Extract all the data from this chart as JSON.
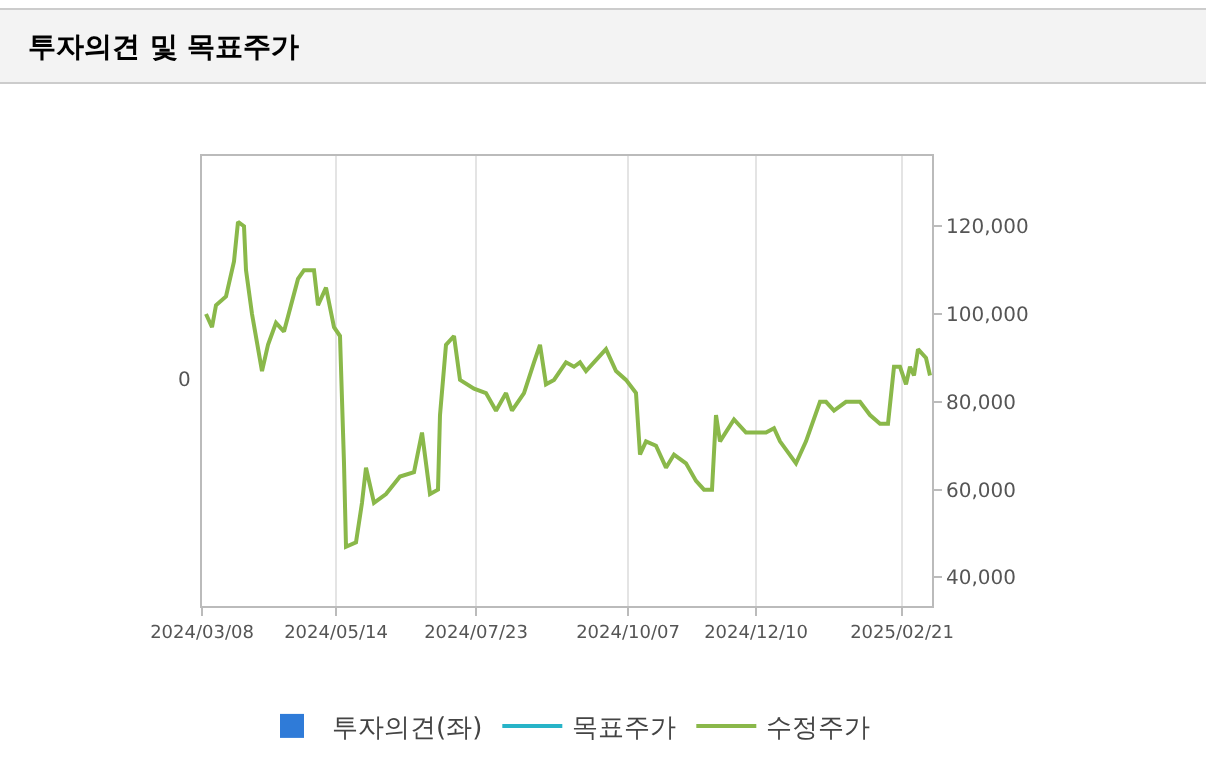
{
  "chart_data": {
    "type": "line",
    "title": "투자의견 및 목표주가",
    "x": [
      "2024-03-10",
      "2024-03-13",
      "2024-03-15",
      "2024-03-20",
      "2024-03-24",
      "2024-03-26",
      "2024-03-29",
      "2024-03-30",
      "2024-04-02",
      "2024-04-07",
      "2024-04-10",
      "2024-04-14",
      "2024-04-18",
      "2024-04-25",
      "2024-04-28",
      "2024-05-03",
      "2024-05-05",
      "2024-05-09",
      "2024-05-13",
      "2024-05-16",
      "2024-05-18",
      "2024-05-19",
      "2024-05-24",
      "2024-05-27",
      "2024-05-29",
      "2024-06-02",
      "2024-06-08",
      "2024-06-15",
      "2024-06-22",
      "2024-06-26",
      "2024-06-30",
      "2024-07-04",
      "2024-07-05",
      "2024-07-08",
      "2024-07-12",
      "2024-07-15",
      "2024-07-22",
      "2024-07-28",
      "2024-08-02",
      "2024-08-07",
      "2024-08-10",
      "2024-08-16",
      "2024-08-21",
      "2024-08-24",
      "2024-08-27",
      "2024-08-31",
      "2024-09-06",
      "2024-09-10",
      "2024-09-13",
      "2024-09-16",
      "2024-09-26",
      "2024-10-01",
      "2024-10-06",
      "2024-10-11",
      "2024-10-13",
      "2024-10-16",
      "2024-10-21",
      "2024-10-26",
      "2024-10-30",
      "2024-11-05",
      "2024-11-10",
      "2024-11-14",
      "2024-11-18",
      "2024-11-20",
      "2024-11-22",
      "2024-11-29",
      "2024-12-05",
      "2024-12-15",
      "2024-12-19",
      "2024-12-22",
      "2024-12-30",
      "2025-01-04",
      "2025-01-11",
      "2025-01-14",
      "2025-01-18",
      "2025-01-24",
      "2025-01-31",
      "2025-02-05",
      "2025-02-10",
      "2025-02-14",
      "2025-02-17",
      "2025-02-20",
      "2025-02-23",
      "2025-02-25",
      "2025-02-27",
      "2025-03-01",
      "2025-03-05",
      "2025-03-07"
    ],
    "series": [
      {
        "name": "투자의견(좌)",
        "type": "bar",
        "color": "#2f7bd8",
        "values": [
          null,
          null,
          null,
          null,
          null,
          null,
          null,
          null,
          null,
          null,
          null,
          null,
          null,
          null,
          null,
          null,
          null,
          null,
          null,
          null,
          null,
          null,
          null,
          null,
          null,
          null,
          null,
          null,
          null,
          null,
          null,
          null,
          null,
          null,
          null,
          null,
          null,
          null,
          null,
          null,
          null,
          null,
          null,
          null,
          null,
          null,
          null,
          null,
          null,
          null,
          null,
          null,
          null,
          null,
          null,
          null,
          null,
          null,
          null,
          null,
          null,
          null,
          null,
          null,
          null,
          null,
          null,
          null,
          null,
          null,
          null,
          null,
          null,
          null,
          null,
          null,
          null,
          null,
          null,
          null,
          null,
          null,
          null,
          null,
          null,
          null,
          null,
          null
        ]
      },
      {
        "name": "목표주가",
        "color": "#27b4c8",
        "values": [
          null,
          null,
          null,
          null,
          null,
          null,
          null,
          null,
          null,
          null,
          null,
          null,
          null,
          null,
          null,
          null,
          null,
          null,
          null,
          null,
          null,
          null,
          null,
          null,
          null,
          null,
          null,
          null,
          null,
          null,
          null,
          null,
          null,
          null,
          null,
          null,
          null,
          null,
          null,
          null,
          null,
          null,
          null,
          null,
          null,
          null,
          null,
          null,
          null,
          null,
          null,
          null,
          null,
          null,
          null,
          null,
          null,
          null,
          null,
          null,
          null,
          null,
          null,
          null,
          null,
          null,
          null,
          null,
          null,
          null,
          null,
          null,
          null,
          null,
          null,
          null,
          null,
          null,
          null,
          null,
          null,
          null,
          null,
          null,
          null,
          null,
          null,
          null
        ]
      },
      {
        "name": "수정주가",
        "color": "#8ab84a",
        "values": [
          100000,
          97000,
          102000,
          104000,
          112000,
          121000,
          120000,
          110000,
          100000,
          87000,
          93000,
          98000,
          96000,
          108000,
          110000,
          110000,
          102000,
          106000,
          97000,
          95000,
          66000,
          47000,
          48000,
          57000,
          65000,
          57000,
          59000,
          63000,
          64000,
          73000,
          59000,
          60000,
          77000,
          93000,
          95000,
          85000,
          83000,
          82000,
          78000,
          82000,
          78000,
          82000,
          89000,
          93000,
          84000,
          85000,
          89000,
          88000,
          89000,
          87000,
          92000,
          87000,
          85000,
          82000,
          68000,
          71000,
          70000,
          65000,
          68000,
          66000,
          62000,
          60000,
          60000,
          77000,
          71000,
          76000,
          73000,
          73000,
          74000,
          71000,
          66000,
          71000,
          80000,
          80000,
          78000,
          80000,
          80000,
          77000,
          75000,
          75000,
          88000,
          88000,
          84000,
          88000,
          86000,
          92000,
          90000,
          86000
        ]
      }
    ],
    "xlim": [
      "2024-03-08",
      "2025-03-08"
    ],
    "xticks": [
      {
        "value": "2024-03-08",
        "label": "2024/03/08"
      },
      {
        "value": "2024-05-14",
        "label": "2024/05/14"
      },
      {
        "value": "2024-07-23",
        "label": "2024/07/23"
      },
      {
        "value": "2024-10-07",
        "label": "2024/10/07"
      },
      {
        "value": "2024-12-10",
        "label": "2024/12/10"
      },
      {
        "value": "2025-02-21",
        "label": "2025/02/21"
      }
    ],
    "ylim": [
      33500,
      136000
    ],
    "yticks": [
      {
        "value": 40000,
        "label": "40,000"
      },
      {
        "value": 60000,
        "label": "60,000"
      },
      {
        "value": 80000,
        "label": "80,000"
      },
      {
        "value": 100000,
        "label": "100,000"
      },
      {
        "value": 120000,
        "label": "120,000"
      }
    ],
    "annotations": [
      "0"
    ],
    "grid": "x",
    "legend": "bottom",
    "marker": "none",
    "line_style": "solid"
  }
}
